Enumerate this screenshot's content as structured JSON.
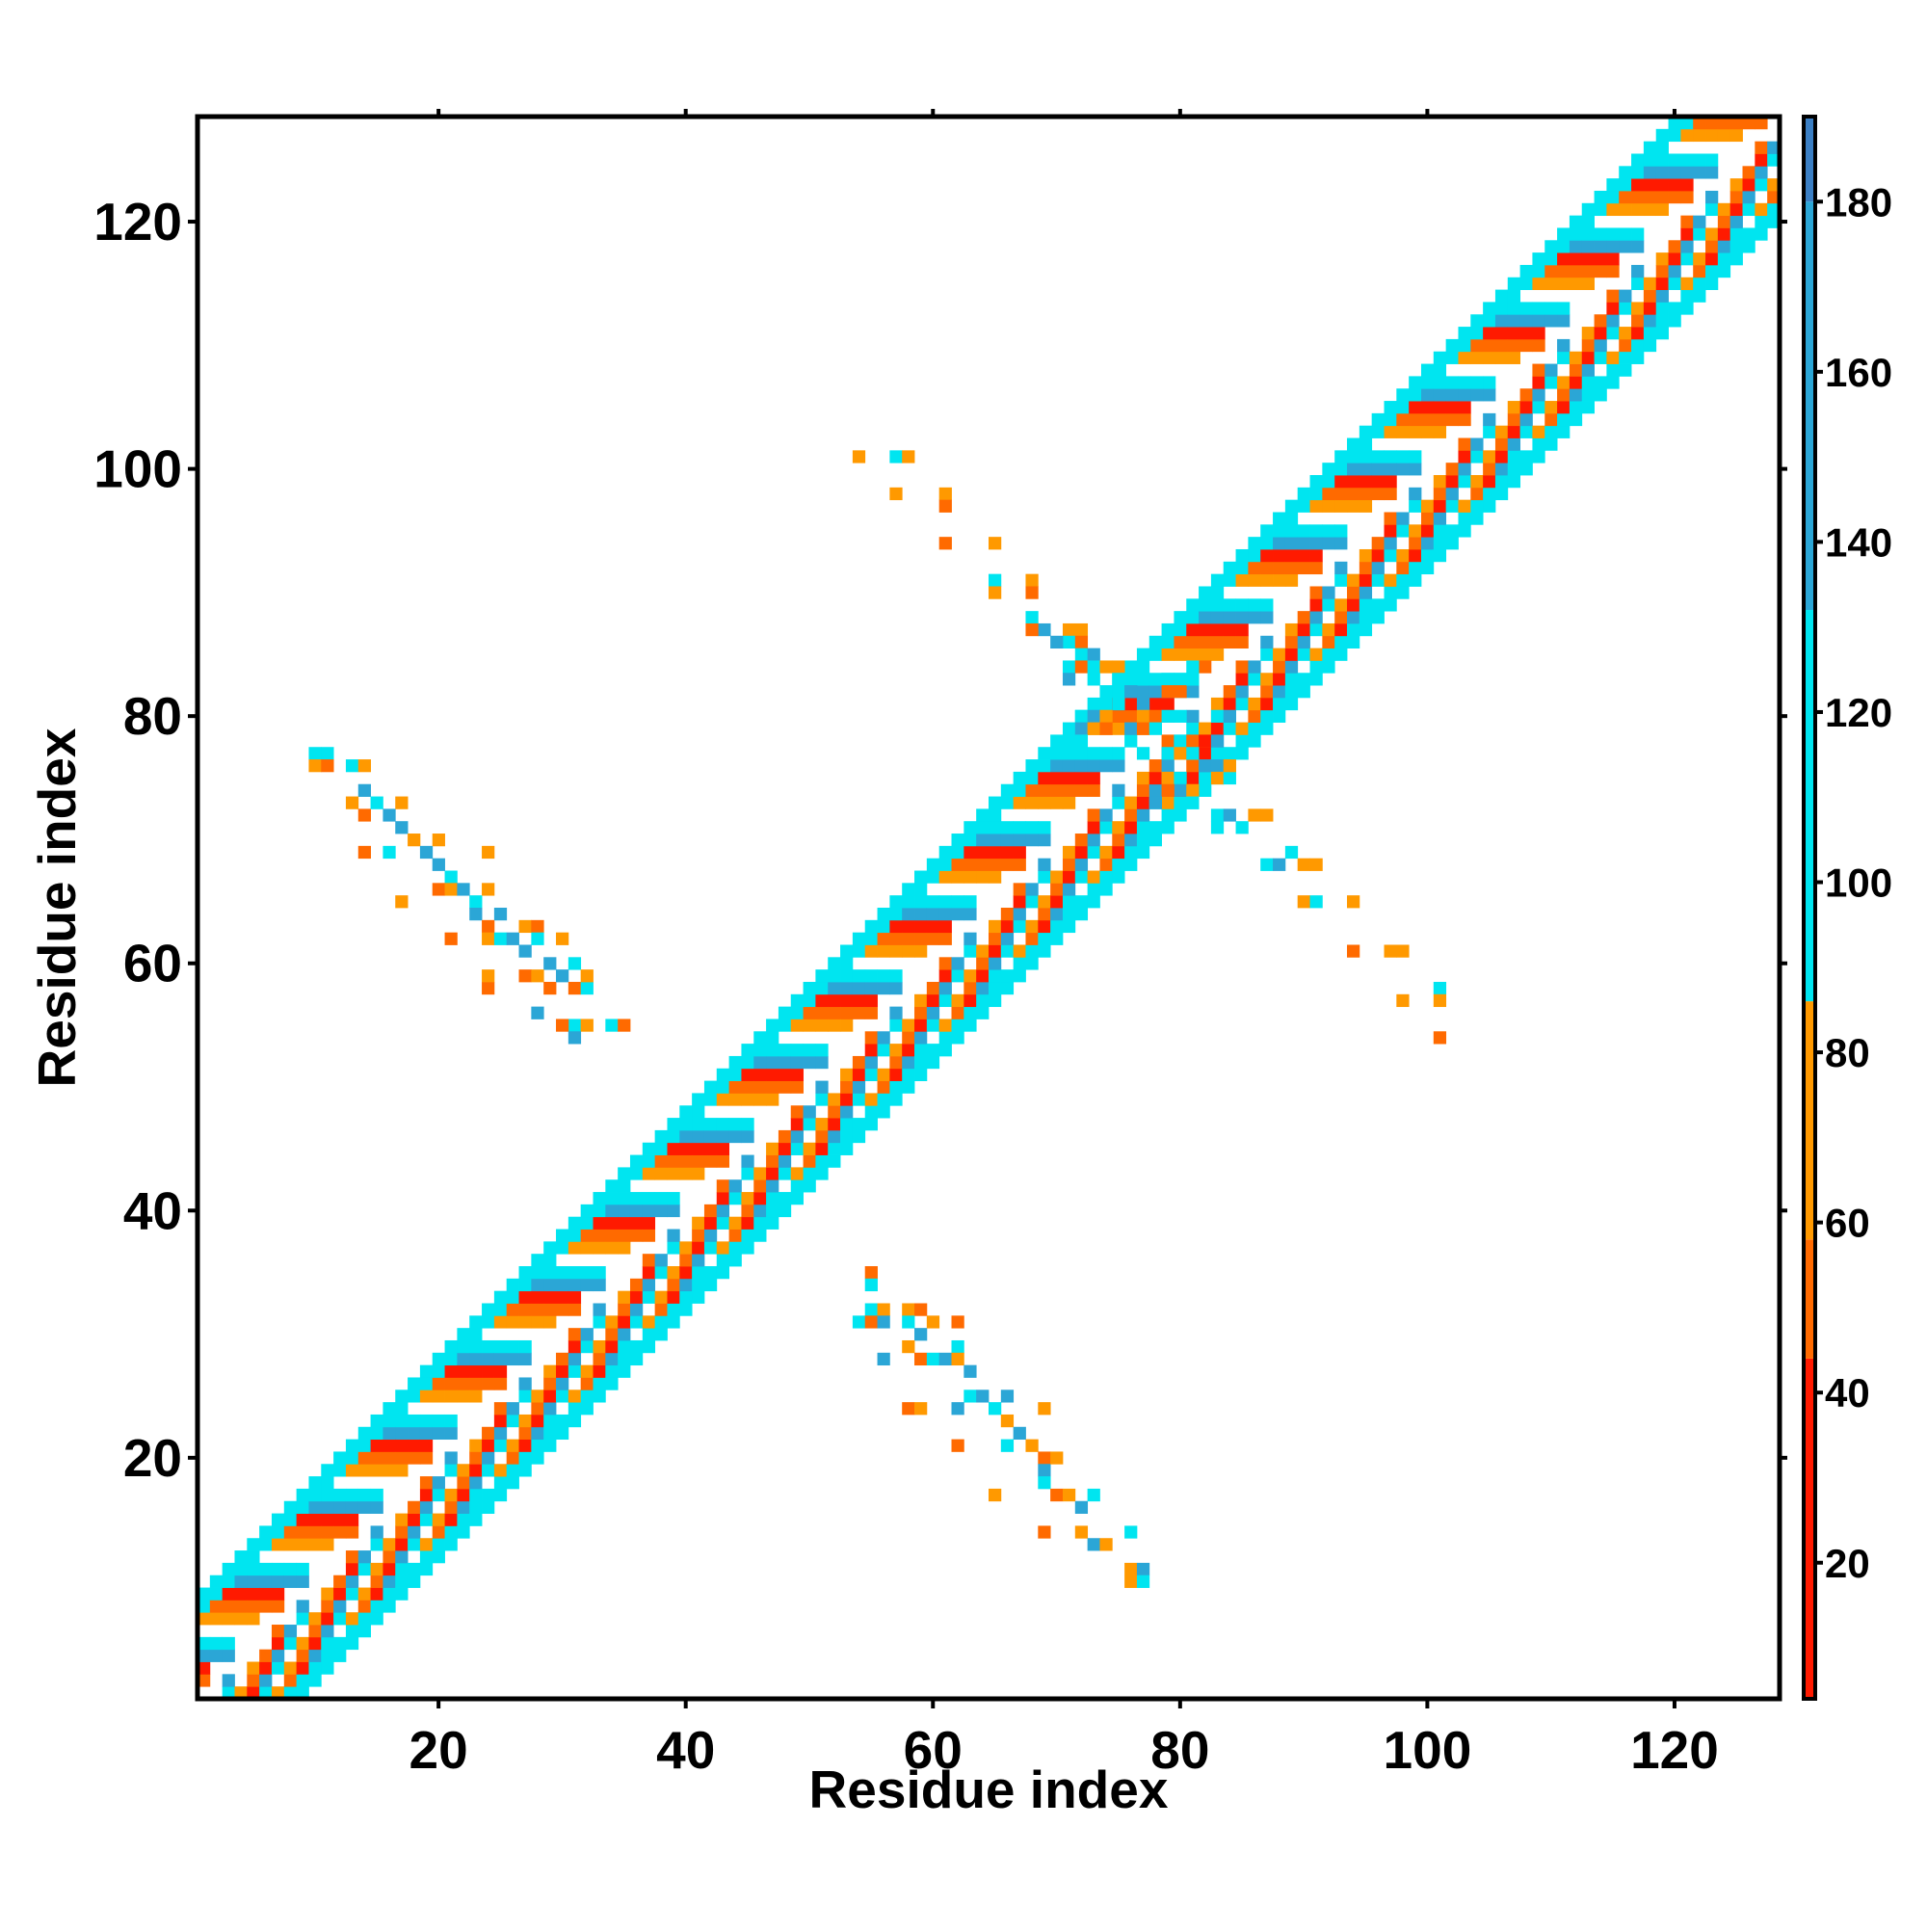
{
  "chart_data": {
    "type": "heatmap",
    "title": "",
    "xlabel": "Residue index",
    "ylabel": "Residue index",
    "xlim": [
      1,
      128
    ],
    "ylim": [
      1,
      128
    ],
    "xticks": [
      20,
      40,
      60,
      80,
      100,
      120
    ],
    "yticks": [
      20,
      40,
      60,
      80,
      100,
      120
    ],
    "colorbar": {
      "min": 4,
      "max": 190,
      "ticks": [
        20,
        40,
        60,
        80,
        100,
        120,
        140,
        160,
        180
      ],
      "stops": [
        {
          "from": 4,
          "to": 44,
          "color": "#ff1a00"
        },
        {
          "from": 44,
          "to": 58,
          "color": "#ff6a00"
        },
        {
          "from": 58,
          "to": 86,
          "color": "#ff9900"
        },
        {
          "from": 86,
          "to": 132,
          "color": "#00e5f0"
        },
        {
          "from": 132,
          "to": 180,
          "color": "#2ba6d6"
        },
        {
          "from": 180,
          "to": 190,
          "color": "#3b7fc4"
        }
      ]
    },
    "palette": [
      "#ff1a00",
      "#ff6a00",
      "#ff9900",
      "#00e5f0",
      "#2ba6d6"
    ],
    "diagonal_band": {
      "half_width": 8,
      "cycle": [
        -1,
        2,
        1,
        0,
        4,
        3
      ],
      "note_values": "banded contacts near the main diagonal"
    },
    "off_diagonal_contacts": [
      {
        "i": 10,
        "j": 77,
        "v": 3
      },
      {
        "i": 11,
        "j": 77,
        "v": 3
      },
      {
        "i": 10,
        "j": 76,
        "v": 2
      },
      {
        "i": 11,
        "j": 76,
        "v": 1
      },
      {
        "i": 13,
        "j": 76,
        "v": 3
      },
      {
        "i": 14,
        "j": 76,
        "v": 2
      },
      {
        "i": 14,
        "j": 74,
        "v": 4
      },
      {
        "i": 13,
        "j": 73,
        "v": 2
      },
      {
        "i": 14,
        "j": 72,
        "v": 1
      },
      {
        "i": 15,
        "j": 73,
        "v": 3
      },
      {
        "i": 16,
        "j": 72,
        "v": 4
      },
      {
        "i": 17,
        "j": 73,
        "v": 2
      },
      {
        "i": 17,
        "j": 71,
        "v": 4
      },
      {
        "i": 18,
        "j": 70,
        "v": 2
      },
      {
        "i": 16,
        "j": 69,
        "v": 3
      },
      {
        "i": 14,
        "j": 69,
        "v": 1
      },
      {
        "i": 19,
        "j": 69,
        "v": 4
      },
      {
        "i": 20,
        "j": 70,
        "v": 2
      },
      {
        "i": 20,
        "j": 68,
        "v": 4
      },
      {
        "i": 21,
        "j": 67,
        "v": 3
      },
      {
        "i": 20,
        "j": 66,
        "v": 1
      },
      {
        "i": 21,
        "j": 66,
        "v": 2
      },
      {
        "i": 17,
        "j": 65,
        "v": 2
      },
      {
        "i": 22,
        "j": 66,
        "v": 4
      },
      {
        "i": 23,
        "j": 65,
        "v": 3
      },
      {
        "i": 24,
        "j": 66,
        "v": 2
      },
      {
        "i": 24,
        "j": 69,
        "v": 2
      },
      {
        "i": 23,
        "j": 64,
        "v": 4
      },
      {
        "i": 24,
        "j": 63,
        "v": 1
      },
      {
        "i": 24,
        "j": 62,
        "v": 2
      },
      {
        "i": 25,
        "j": 62,
        "v": 3
      },
      {
        "i": 25,
        "j": 64,
        "v": 4
      },
      {
        "i": 26,
        "j": 62,
        "v": 4
      },
      {
        "i": 27,
        "j": 63,
        "v": 2
      },
      {
        "i": 27,
        "j": 61,
        "v": 4
      },
      {
        "i": 28,
        "j": 63,
        "v": 1
      },
      {
        "i": 28,
        "j": 62,
        "v": 3
      },
      {
        "i": 29,
        "j": 60,
        "v": 4
      },
      {
        "i": 21,
        "j": 62,
        "v": 1
      },
      {
        "i": 30,
        "j": 62,
        "v": 2
      },
      {
        "i": 31,
        "j": 60,
        "v": 3
      },
      {
        "i": 27,
        "j": 59,
        "v": 1
      },
      {
        "i": 28,
        "j": 59,
        "v": 2
      },
      {
        "i": 29,
        "j": 58,
        "v": 1
      },
      {
        "i": 30,
        "j": 59,
        "v": 4
      },
      {
        "i": 31,
        "j": 58,
        "v": 1
      },
      {
        "i": 32,
        "j": 58,
        "v": 3
      },
      {
        "i": 32,
        "j": 59,
        "v": 2
      },
      {
        "i": 24,
        "j": 58,
        "v": 1
      },
      {
        "i": 24,
        "j": 59,
        "v": 2
      },
      {
        "i": 28,
        "j": 56,
        "v": 4
      },
      {
        "i": 31,
        "j": 55,
        "v": 3
      },
      {
        "i": 32,
        "j": 55,
        "v": 2
      },
      {
        "i": 30,
        "j": 55,
        "v": 1
      },
      {
        "i": 31,
        "j": 54,
        "v": 4
      },
      {
        "i": 34,
        "j": 55,
        "v": 3
      },
      {
        "i": 35,
        "j": 55,
        "v": 1
      },
      {
        "i": 55,
        "j": 35,
        "v": 1
      },
      {
        "i": 55,
        "j": 34,
        "v": 3
      },
      {
        "i": 55,
        "j": 32,
        "v": 3
      },
      {
        "i": 56,
        "j": 32,
        "v": 2
      },
      {
        "i": 54,
        "j": 31,
        "v": 3
      },
      {
        "i": 55,
        "j": 31,
        "v": 1
      },
      {
        "i": 56,
        "j": 31,
        "v": 4
      },
      {
        "i": 58,
        "j": 32,
        "v": 2
      },
      {
        "i": 59,
        "j": 32,
        "v": 1
      },
      {
        "i": 58,
        "j": 31,
        "v": 3
      },
      {
        "i": 59,
        "j": 30,
        "v": 4
      },
      {
        "i": 60,
        "j": 31,
        "v": 2
      },
      {
        "i": 62,
        "j": 31,
        "v": 1
      },
      {
        "i": 58,
        "j": 29,
        "v": 2
      },
      {
        "i": 59,
        "j": 28,
        "v": 1
      },
      {
        "i": 60,
        "j": 28,
        "v": 3
      },
      {
        "i": 61,
        "j": 28,
        "v": 4
      },
      {
        "i": 62,
        "j": 29,
        "v": 3
      },
      {
        "i": 62,
        "j": 28,
        "v": 2
      },
      {
        "i": 63,
        "j": 27,
        "v": 4
      },
      {
        "i": 56,
        "j": 28,
        "v": 4
      },
      {
        "i": 58,
        "j": 24,
        "v": 1
      },
      {
        "i": 59,
        "j": 24,
        "v": 2
      },
      {
        "i": 62,
        "j": 24,
        "v": 4
      },
      {
        "i": 63,
        "j": 25,
        "v": 3
      },
      {
        "i": 64,
        "j": 25,
        "v": 4
      },
      {
        "i": 65,
        "j": 24,
        "v": 3
      },
      {
        "i": 66,
        "j": 25,
        "v": 4
      },
      {
        "i": 66,
        "j": 23,
        "v": 2
      },
      {
        "i": 67,
        "j": 22,
        "v": 4
      },
      {
        "i": 69,
        "j": 24,
        "v": 2
      },
      {
        "i": 62,
        "j": 21,
        "v": 1
      },
      {
        "i": 66,
        "j": 21,
        "v": 3
      },
      {
        "i": 68,
        "j": 21,
        "v": 2
      },
      {
        "i": 69,
        "j": 20,
        "v": 1
      },
      {
        "i": 69,
        "j": 19,
        "v": 4
      },
      {
        "i": 70,
        "j": 20,
        "v": 2
      },
      {
        "i": 65,
        "j": 17,
        "v": 2
      },
      {
        "i": 69,
        "j": 18,
        "v": 3
      },
      {
        "i": 70,
        "j": 17,
        "v": 1
      },
      {
        "i": 71,
        "j": 17,
        "v": 2
      },
      {
        "i": 72,
        "j": 16,
        "v": 4
      },
      {
        "i": 73,
        "j": 17,
        "v": 3
      },
      {
        "i": 69,
        "j": 14,
        "v": 1
      },
      {
        "i": 72,
        "j": 14,
        "v": 2
      },
      {
        "i": 73,
        "j": 13,
        "v": 4
      },
      {
        "i": 74,
        "j": 13,
        "v": 2
      },
      {
        "i": 76,
        "j": 14,
        "v": 3
      },
      {
        "i": 76,
        "j": 11,
        "v": 2
      },
      {
        "i": 76,
        "j": 10,
        "v": 2
      },
      {
        "i": 77,
        "j": 11,
        "v": 4
      },
      {
        "i": 77,
        "j": 10,
        "v": 3
      },
      {
        "i": 54,
        "j": 101,
        "v": 2
      },
      {
        "i": 57,
        "j": 101,
        "v": 3
      },
      {
        "i": 58,
        "j": 101,
        "v": 2
      },
      {
        "i": 57,
        "j": 98,
        "v": 2
      },
      {
        "i": 61,
        "j": 98,
        "v": 2
      },
      {
        "i": 61,
        "j": 97,
        "v": 1
      },
      {
        "i": 61,
        "j": 94,
        "v": 1
      },
      {
        "i": 65,
        "j": 94,
        "v": 2
      },
      {
        "i": 65,
        "j": 91,
        "v": 3
      },
      {
        "i": 68,
        "j": 91,
        "v": 2
      },
      {
        "i": 65,
        "j": 90,
        "v": 2
      },
      {
        "i": 68,
        "j": 90,
        "v": 1
      },
      {
        "i": 68,
        "j": 88,
        "v": 3
      },
      {
        "i": 69,
        "j": 87,
        "v": 4
      },
      {
        "i": 68,
        "j": 87,
        "v": 1
      },
      {
        "i": 71,
        "j": 87,
        "v": 2
      },
      {
        "i": 72,
        "j": 87,
        "v": 2
      },
      {
        "i": 71,
        "j": 86,
        "v": 3
      },
      {
        "i": 72,
        "j": 86,
        "v": 1
      },
      {
        "i": 70,
        "j": 86,
        "v": 4
      },
      {
        "i": 72,
        "j": 85,
        "v": 3
      },
      {
        "i": 73,
        "j": 85,
        "v": 4
      },
      {
        "i": 71,
        "j": 84,
        "v": 3
      },
      {
        "i": 72,
        "j": 84,
        "v": 1
      },
      {
        "i": 73,
        "j": 84,
        "v": 3
      },
      {
        "i": 74,
        "j": 84,
        "v": 2
      },
      {
        "i": 75,
        "j": 84,
        "v": 2
      },
      {
        "i": 71,
        "j": 83,
        "v": 4
      },
      {
        "i": 73,
        "j": 83,
        "v": 3
      },
      {
        "i": 75,
        "j": 83,
        "v": 3
      },
      {
        "i": 76,
        "j": 82,
        "v": 4
      },
      {
        "i": 77,
        "j": 81,
        "v": 4
      },
      {
        "i": 75,
        "j": 81,
        "v": 3
      },
      {
        "i": 72,
        "j": 80,
        "v": 3
      },
      {
        "i": 73,
        "j": 80,
        "v": 4
      },
      {
        "i": 74,
        "j": 80,
        "v": 2
      },
      {
        "i": 72,
        "j": 79,
        "v": 4
      },
      {
        "i": 73,
        "j": 79,
        "v": 2
      },
      {
        "i": 74,
        "j": 79,
        "v": 1
      },
      {
        "i": 72,
        "j": 78,
        "v": 3
      },
      {
        "i": 76,
        "j": 78,
        "v": 3
      },
      {
        "i": 76,
        "j": 79,
        "v": 4
      },
      {
        "i": 79,
        "j": 83,
        "v": 3
      },
      {
        "i": 80,
        "j": 83,
        "v": 3
      },
      {
        "i": 79,
        "j": 82,
        "v": 1
      },
      {
        "i": 80,
        "j": 82,
        "v": 1
      },
      {
        "i": 81,
        "j": 83,
        "v": 3
      },
      {
        "i": 82,
        "j": 84,
        "v": 1
      },
      {
        "i": 81,
        "j": 84,
        "v": 3
      },
      {
        "i": 77,
        "j": 80,
        "v": 2
      },
      {
        "i": 78,
        "j": 80,
        "v": 1
      },
      {
        "i": 79,
        "j": 80,
        "v": 3
      },
      {
        "i": 80,
        "j": 80,
        "v": 3
      },
      {
        "i": 77,
        "j": 79,
        "v": 1
      },
      {
        "i": 78,
        "j": 79,
        "v": 3
      },
      {
        "i": 83,
        "j": 80,
        "v": 3
      },
      {
        "i": 84,
        "j": 80,
        "v": 4
      },
      {
        "i": 80,
        "j": 78,
        "v": 3
      },
      {
        "i": 81,
        "j": 78,
        "v": 1
      },
      {
        "i": 82,
        "j": 78,
        "v": 0
      },
      {
        "i": 83,
        "j": 78,
        "v": 4
      },
      {
        "i": 77,
        "j": 77,
        "v": 3
      },
      {
        "i": 79,
        "j": 77,
        "v": 3
      },
      {
        "i": 80,
        "j": 77,
        "v": 2
      },
      {
        "i": 81,
        "j": 77,
        "v": 3
      },
      {
        "i": 82,
        "j": 76,
        "v": 4
      },
      {
        "i": 83,
        "j": 76,
        "v": 4
      },
      {
        "i": 83,
        "j": 75,
        "v": 2
      },
      {
        "i": 84,
        "j": 75,
        "v": 3
      },
      {
        "i": 84,
        "j": 76,
        "v": 2
      },
      {
        "i": 79,
        "j": 75,
        "v": 2
      },
      {
        "i": 80,
        "j": 75,
        "v": 3
      },
      {
        "i": 80,
        "j": 74,
        "v": 4
      },
      {
        "i": 79,
        "j": 74,
        "v": 1
      },
      {
        "i": 81,
        "j": 74,
        "v": 2
      },
      {
        "i": 81,
        "j": 73,
        "v": 3
      },
      {
        "i": 78,
        "j": 73,
        "v": 4
      },
      {
        "i": 83,
        "j": 72,
        "v": 3
      },
      {
        "i": 84,
        "j": 72,
        "v": 4
      },
      {
        "i": 83,
        "j": 71,
        "v": 3
      },
      {
        "i": 85,
        "j": 71,
        "v": 3
      },
      {
        "i": 86,
        "j": 72,
        "v": 2
      },
      {
        "i": 87,
        "j": 72,
        "v": 2
      },
      {
        "i": 87,
        "j": 68,
        "v": 3
      },
      {
        "i": 88,
        "j": 68,
        "v": 4
      },
      {
        "i": 89,
        "j": 69,
        "v": 3
      },
      {
        "i": 90,
        "j": 68,
        "v": 2
      },
      {
        "i": 91,
        "j": 68,
        "v": 2
      },
      {
        "i": 90,
        "j": 65,
        "v": 2
      },
      {
        "i": 91,
        "j": 65,
        "v": 3
      },
      {
        "i": 94,
        "j": 65,
        "v": 2
      },
      {
        "i": 94,
        "j": 61,
        "v": 1
      },
      {
        "i": 97,
        "j": 61,
        "v": 2
      },
      {
        "i": 98,
        "j": 61,
        "v": 2
      },
      {
        "i": 98,
        "j": 57,
        "v": 2
      },
      {
        "i": 101,
        "j": 58,
        "v": 3
      },
      {
        "i": 101,
        "j": 57,
        "v": 2
      },
      {
        "i": 101,
        "j": 54,
        "v": 1
      }
    ]
  }
}
